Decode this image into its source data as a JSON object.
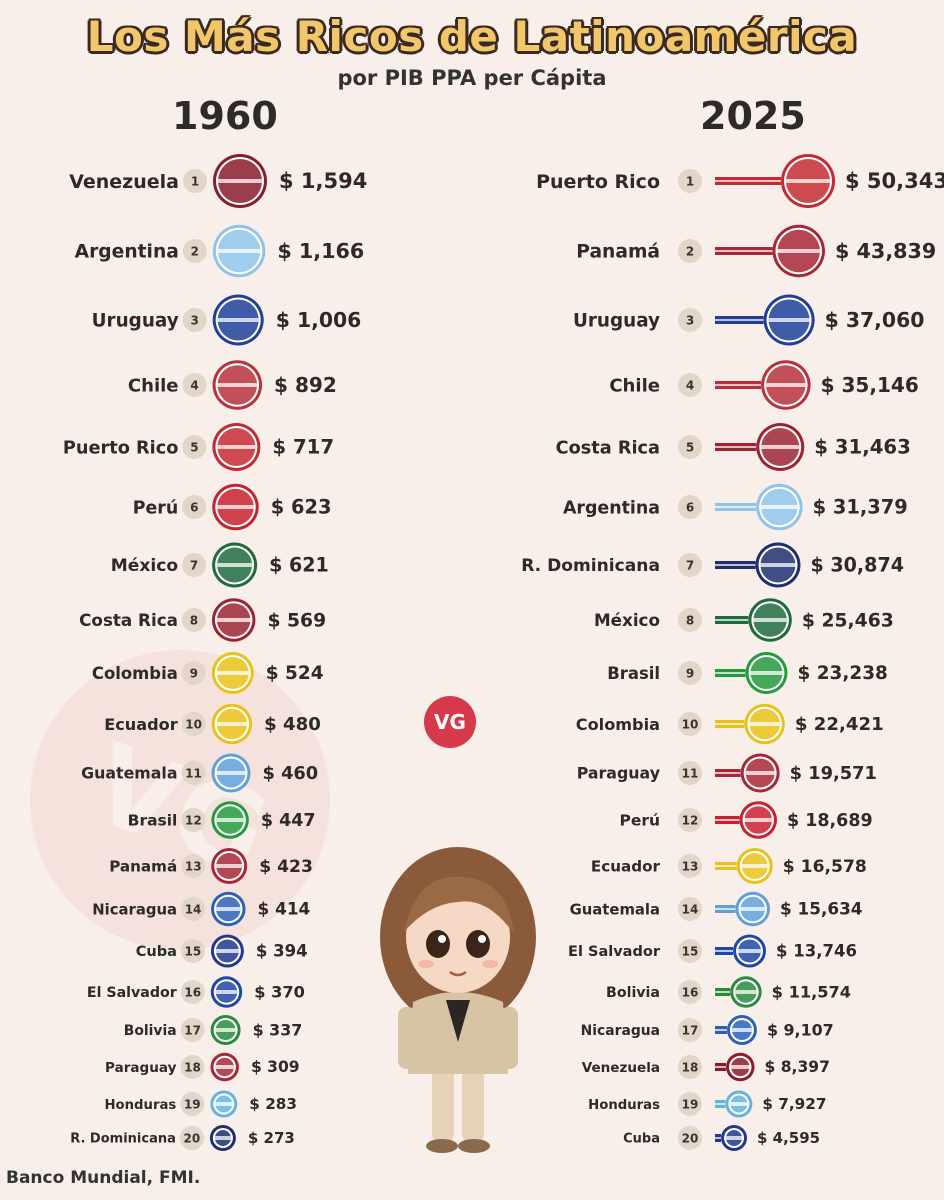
{
  "title": "Los Más Ricos de Latinoamérica",
  "subtitle": "por PIB PPA per Cápita",
  "source": "Banco Mundial, FMI.",
  "badge": "VG",
  "watermark": "VG",
  "chart_data": [
    {
      "type": "table",
      "title": "1960",
      "ranks": [
        1,
        2,
        3,
        4,
        5,
        6,
        7,
        8,
        9,
        10,
        11,
        12,
        13,
        14,
        15,
        16,
        17,
        18,
        19,
        20
      ],
      "categories": [
        "Venezuela",
        "Argentina",
        "Uruguay",
        "Chile",
        "Puerto Rico",
        "Perú",
        "México",
        "Costa Rica",
        "Colombia",
        "Ecuador",
        "Guatemala",
        "Brasil",
        "Panamá",
        "Nicaragua",
        "Cuba",
        "El Salvador",
        "Bolivia",
        "Paraguay",
        "Honduras",
        "R. Dominicana"
      ],
      "values": [
        1594,
        1166,
        1006,
        892,
        717,
        623,
        621,
        569,
        524,
        480,
        460,
        447,
        423,
        414,
        394,
        370,
        337,
        309,
        283,
        273
      ],
      "labels": [
        "$ 1,594",
        "$ 1,166",
        "$ 1,006",
        "$ 892",
        "$ 717",
        "$ 623",
        "$ 621",
        "$ 569",
        "$ 524",
        "$ 480",
        "$ 460",
        "$ 447",
        "$ 423",
        "$ 414",
        "$ 394",
        "$ 370",
        "$ 337",
        "$ 309",
        "$ 283",
        "$ 273"
      ]
    },
    {
      "type": "bar",
      "title": "2025",
      "ranks": [
        1,
        2,
        3,
        4,
        5,
        6,
        7,
        8,
        9,
        10,
        11,
        12,
        13,
        14,
        15,
        16,
        17,
        18,
        19,
        20
      ],
      "categories": [
        "Puerto Rico",
        "Panamá",
        "Uruguay",
        "Chile",
        "Costa Rica",
        "Argentina",
        "R. Dominicana",
        "México",
        "Brasil",
        "Colombia",
        "Paraguay",
        "Perú",
        "Ecuador",
        "Guatemala",
        "El Salvador",
        "Bolivia",
        "Nicaragua",
        "Venezuela",
        "Honduras",
        "Cuba"
      ],
      "values": [
        50343,
        43839,
        37060,
        35146,
        31463,
        31379,
        30874,
        25463,
        23238,
        22421,
        19571,
        18689,
        16578,
        15634,
        13746,
        11574,
        9107,
        8397,
        7927,
        4595
      ],
      "labels": [
        "$ 50,343",
        "$ 43,839",
        "$ 37,060",
        "$ 35,146",
        "$ 31,463",
        "$ 31,379",
        "$ 30,874",
        "$ 25,463",
        "$ 23,238",
        "$ 22,421",
        "$ 19,571",
        "$ 18,689",
        "$ 16,578",
        "$ 15,634",
        "$ 13,746",
        "$ 11,574",
        "$ 9,107",
        "$ 8,397",
        "$ 7,927",
        "$ 4,595"
      ]
    }
  ],
  "country_colors": {
    "Venezuela": "#8a1c2b",
    "Argentina": "#8fc3ea",
    "Uruguay": "#1f3f9a",
    "Chile": "#b8313b",
    "Puerto Rico": "#c42a33",
    "Perú": "#c8202e",
    "México": "#1f6b3f",
    "Costa Rica": "#9c2432",
    "Colombia": "#e8c21a",
    "Ecuador": "#e8c21a",
    "Guatemala": "#5fa0dc",
    "Brasil": "#239a3b",
    "Panamá": "#a82636",
    "Nicaragua": "#2c5fb8",
    "Cuba": "#23378f",
    "El Salvador": "#1f47a8",
    "Bolivia": "#2b8a3e",
    "Paraguay": "#a82636",
    "Honduras": "#62b5e0",
    "R. Dominicana": "#1d2f6f"
  }
}
